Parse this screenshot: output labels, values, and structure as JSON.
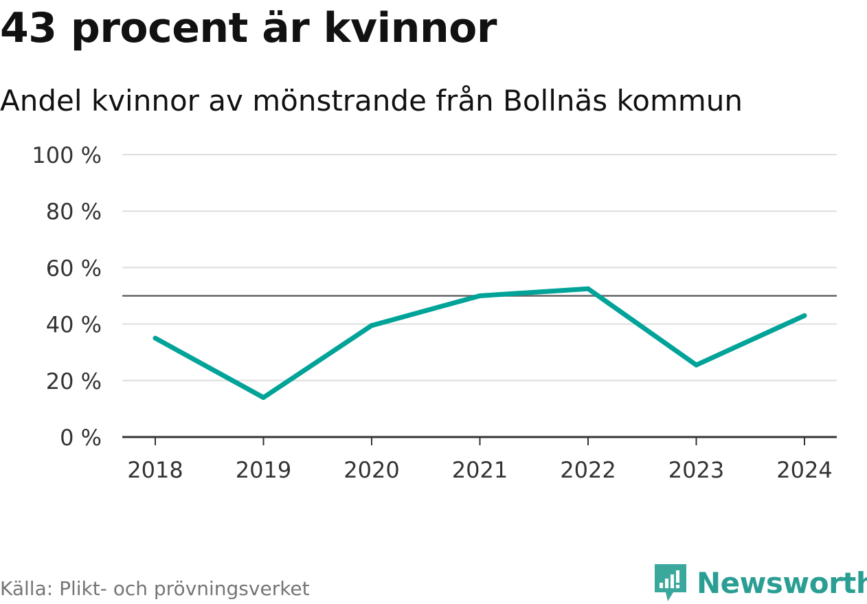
{
  "header": {
    "title": "43 procent är kvinnor",
    "subtitle": "Andel kvinnor av mönstrande från Bollnäs kommun"
  },
  "footer": {
    "source": "Källa: Plikt- och prövningsverket",
    "brand": "Newsworthy"
  },
  "colors": {
    "line": "#00a398",
    "reference": "#666666",
    "grid": "#dddddd",
    "axis": "#333333",
    "brand": "#2b9e93"
  },
  "chart_data": {
    "type": "line",
    "title": "43 procent är kvinnor",
    "subtitle": "Andel kvinnor av mönstrande från Bollnäs kommun",
    "categories": [
      "2018",
      "2019",
      "2020",
      "2021",
      "2022",
      "2023",
      "2024"
    ],
    "series": [
      {
        "name": "Andel kvinnor",
        "values": [
          35,
          14,
          39.5,
          50,
          52.5,
          25.5,
          43
        ]
      }
    ],
    "reference_line": 50,
    "ylim": [
      0,
      100
    ],
    "yticks": [
      0,
      20,
      40,
      60,
      80,
      100
    ],
    "ytick_labels": [
      "0 %",
      "20 %",
      "40 %",
      "60 %",
      "80 %",
      "100 %"
    ],
    "xlabel": "",
    "ylabel": "",
    "grid": true
  }
}
